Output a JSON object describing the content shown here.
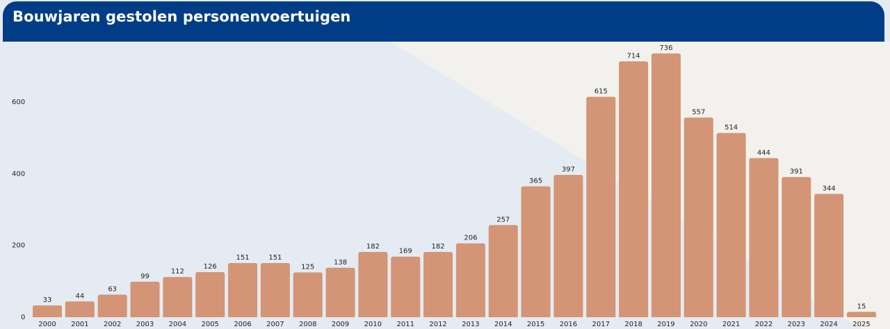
{
  "header": {
    "title": "Bouwjaren gestolen personenvoertuigen"
  },
  "colors": {
    "bar": "#d39575",
    "header": "#003d86"
  },
  "chart_data": {
    "type": "bar",
    "title": "Bouwjaren gestolen personenvoertuigen",
    "xlabel": "",
    "ylabel": "",
    "ylim": [
      0,
      736
    ],
    "yticks": [
      0,
      200,
      400,
      600
    ],
    "grid": false,
    "categories": [
      "2000",
      "2001",
      "2002",
      "2003",
      "2004",
      "2005",
      "2006",
      "2007",
      "2008",
      "2009",
      "2010",
      "2011",
      "2012",
      "2013",
      "2014",
      "2015",
      "2016",
      "2017",
      "2018",
      "2019",
      "2020",
      "2021",
      "2022",
      "2023",
      "2024",
      "2025"
    ],
    "values": [
      33,
      44,
      63,
      99,
      112,
      126,
      151,
      151,
      125,
      138,
      182,
      169,
      182,
      206,
      257,
      365,
      397,
      615,
      714,
      736,
      557,
      514,
      444,
      391,
      344,
      15
    ]
  }
}
